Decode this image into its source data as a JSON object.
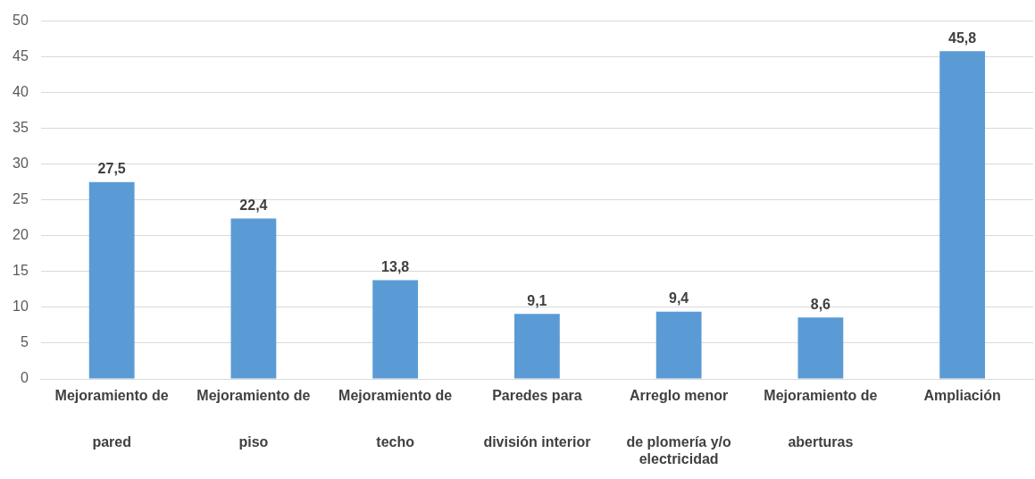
{
  "chart_data": {
    "type": "bar",
    "categories": [
      "Mejoramiento de\npared",
      "Mejoramiento de\npiso",
      "Mejoramiento de\ntecho",
      "Paredes para\ndivisión interior",
      "Arreglo menor\nde plomería y/o\nelectricidad",
      "Mejoramiento de\naberturas",
      "Ampliación"
    ],
    "values": [
      27.5,
      22.4,
      13.8,
      9.1,
      9.4,
      8.6,
      45.8
    ],
    "value_labels": [
      "27,5",
      "22,4",
      "13,8",
      "9,1",
      "9,4",
      "8,6",
      "45,8"
    ],
    "color": "#5b9bd5",
    "ylim": [
      0,
      50
    ],
    "yticks": [
      0,
      5,
      10,
      15,
      20,
      25,
      30,
      35,
      40,
      45,
      50
    ],
    "grid": "y",
    "legend": false
  }
}
